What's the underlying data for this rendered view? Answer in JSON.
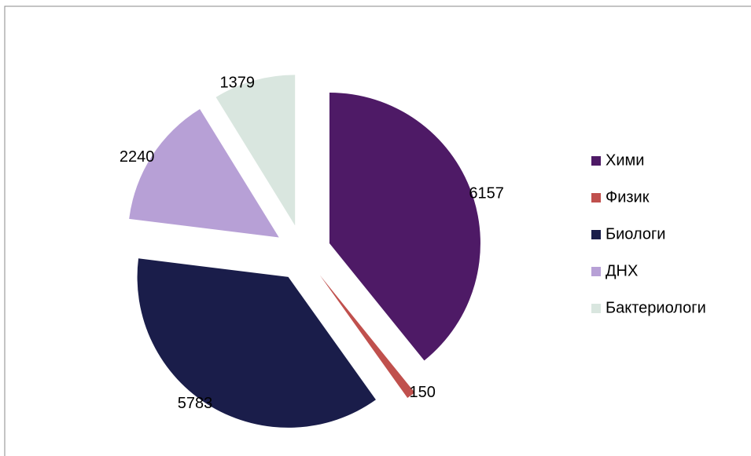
{
  "chart_data": {
    "type": "pie",
    "categories": [
      "Хими",
      "Физик",
      "Биологи",
      "ДНХ",
      "Бактериологи"
    ],
    "values": [
      6157,
      150,
      5783,
      2240,
      1379
    ],
    "colors": [
      "#4e1a66",
      "#c0504d",
      "#1a1d4a",
      "#b7a0d6",
      "#d9e6df"
    ],
    "legend": "right"
  }
}
